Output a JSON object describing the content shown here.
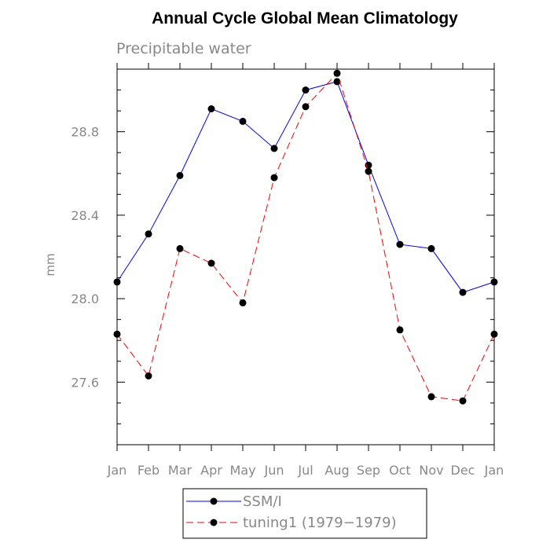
{
  "chart_data": {
    "type": "line",
    "title": "Annual Cycle Global Mean Climatology",
    "subtitle": "Precipitable water",
    "xlabel": "",
    "ylabel": "mm",
    "categories": [
      "Jan",
      "Feb",
      "Mar",
      "Apr",
      "May",
      "Jun",
      "Jul",
      "Aug",
      "Sep",
      "Oct",
      "Nov",
      "Dec",
      "Jan"
    ],
    "ylim": [
      27.3,
      29.1
    ],
    "yticks": [
      "27.6",
      "28.0",
      "28.4",
      "28.8"
    ],
    "series": [
      {
        "name": "SSM/I",
        "color": "#0000ff",
        "style": "solid",
        "values": [
          28.08,
          28.31,
          28.59,
          28.91,
          28.85,
          28.72,
          29.0,
          29.04,
          28.64,
          28.26,
          28.24,
          28.03,
          28.08
        ]
      },
      {
        "name": "tuning1 (1979−1979)",
        "color": "#ff0000",
        "style": "dashed",
        "values": [
          27.83,
          27.63,
          28.24,
          28.17,
          27.98,
          28.58,
          28.92,
          29.08,
          28.61,
          27.85,
          27.53,
          27.51,
          27.83
        ]
      }
    ],
    "legend_position": "bottom-center"
  }
}
